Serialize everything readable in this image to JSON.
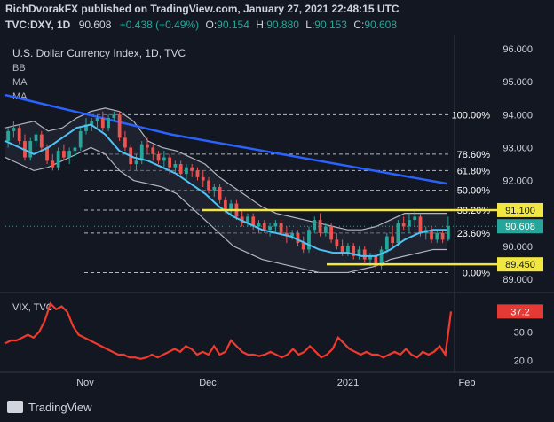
{
  "header": {
    "line1": "RichDvorakFX published on TradingView.com, January 27, 2021 22:48:15 UTC",
    "symbol": "TVC:DXY, 1D",
    "price": "90.608",
    "change": "+0.438 (+0.49%)",
    "o_label": "O:",
    "o_value": "90.154",
    "h_label": "H:",
    "h_value": "90.880",
    "l_label": "L:",
    "l_value": "90.153",
    "c_label": "C:",
    "c_value": "90.608"
  },
  "main_pane": {
    "title": "U.S. Dollar Currency Index, 1D, TVC",
    "indicators": [
      "BB",
      "MA",
      "MA"
    ]
  },
  "vix_pane": {
    "title": "VIX, TVC"
  },
  "footer": {
    "brand": "TradingView"
  },
  "colors": {
    "background": "#131722",
    "up": "#26a69a",
    "down": "#ef5350",
    "ma_long": "#2962ff",
    "ma_short": "#4fc3f7",
    "bollinger": "#b2b5be",
    "highlight": "#f2e640",
    "vix_line": "#f23a2c",
    "vix_label": "#e53935",
    "text": "#d1d4dc",
    "price_label": "#26a69a"
  },
  "chart_data": [
    {
      "type": "candlestick",
      "title": "U.S. Dollar Currency Index, 1D, TVC",
      "x_ticks": [
        "Nov",
        "Dec",
        "2021",
        "Feb"
      ],
      "y_ticks": [
        "89.000",
        "90.000",
        "91.000",
        "92.000",
        "93.000",
        "94.000",
        "95.000",
        "96.000"
      ],
      "ylim": [
        88.7,
        96.3
      ],
      "ohlc": [
        [
          93.2,
          93.6,
          93.0,
          93.5
        ],
        [
          93.5,
          93.8,
          93.3,
          93.6
        ],
        [
          93.6,
          93.7,
          93.1,
          93.2
        ],
        [
          93.2,
          93.4,
          92.6,
          92.7
        ],
        [
          92.7,
          93.3,
          92.6,
          93.2
        ],
        [
          93.2,
          93.5,
          93.0,
          93.4
        ],
        [
          93.4,
          93.5,
          92.9,
          93.0
        ],
        [
          93.0,
          93.1,
          92.5,
          92.6
        ],
        [
          92.6,
          92.8,
          92.3,
          92.4
        ],
        [
          92.4,
          93.0,
          92.3,
          92.9
        ],
        [
          92.9,
          93.1,
          92.6,
          92.7
        ],
        [
          92.7,
          93.0,
          92.5,
          92.9
        ],
        [
          92.9,
          93.1,
          92.7,
          93.0
        ],
        [
          93.0,
          93.6,
          92.9,
          93.5
        ],
        [
          93.5,
          93.9,
          93.4,
          93.7
        ],
        [
          93.7,
          93.9,
          93.5,
          93.8
        ],
        [
          93.8,
          94.0,
          93.6,
          93.9
        ],
        [
          93.9,
          94.1,
          93.5,
          93.6
        ],
        [
          93.6,
          94.0,
          93.5,
          93.9
        ],
        [
          93.9,
          94.1,
          93.8,
          94.0
        ],
        [
          94.0,
          94.1,
          93.2,
          93.3
        ],
        [
          93.3,
          93.5,
          92.9,
          93.0
        ],
        [
          93.0,
          93.1,
          92.3,
          92.5
        ],
        [
          92.5,
          92.8,
          92.3,
          92.6
        ],
        [
          92.6,
          93.2,
          92.5,
          93.1
        ],
        [
          93.1,
          93.3,
          92.8,
          93.0
        ],
        [
          93.0,
          93.1,
          92.6,
          92.8
        ],
        [
          92.8,
          92.9,
          92.5,
          92.6
        ],
        [
          92.6,
          92.9,
          92.4,
          92.7
        ],
        [
          92.7,
          92.8,
          92.2,
          92.4
        ],
        [
          92.4,
          92.6,
          92.2,
          92.5
        ],
        [
          92.5,
          92.6,
          92.1,
          92.2
        ],
        [
          92.2,
          92.5,
          92.0,
          92.4
        ],
        [
          92.4,
          92.5,
          92.1,
          92.3
        ],
        [
          92.3,
          92.4,
          92.0,
          92.1
        ],
        [
          92.1,
          92.3,
          91.8,
          92.0
        ],
        [
          92.0,
          92.1,
          91.6,
          91.7
        ],
        [
          91.7,
          91.9,
          91.5,
          91.8
        ],
        [
          91.8,
          91.9,
          91.3,
          91.4
        ],
        [
          91.4,
          91.5,
          91.0,
          91.1
        ],
        [
          91.1,
          91.4,
          90.9,
          91.3
        ],
        [
          91.3,
          91.4,
          90.8,
          90.9
        ],
        [
          90.9,
          91.1,
          90.6,
          90.7
        ],
        [
          90.7,
          91.0,
          90.6,
          90.9
        ],
        [
          90.9,
          91.0,
          90.5,
          90.6
        ],
        [
          90.6,
          90.8,
          90.4,
          90.7
        ],
        [
          90.7,
          90.8,
          90.4,
          90.5
        ],
        [
          90.5,
          90.7,
          90.3,
          90.6
        ],
        [
          90.6,
          90.8,
          90.4,
          90.7
        ],
        [
          90.7,
          90.8,
          90.3,
          90.4
        ],
        [
          90.4,
          90.6,
          90.1,
          90.3
        ],
        [
          90.3,
          90.5,
          90.2,
          90.4
        ],
        [
          90.4,
          90.5,
          90.0,
          90.1
        ],
        [
          90.1,
          90.3,
          89.8,
          89.9
        ],
        [
          89.9,
          90.6,
          89.8,
          90.5
        ],
        [
          90.5,
          90.9,
          90.4,
          90.8
        ],
        [
          90.8,
          91.0,
          90.3,
          90.4
        ],
        [
          90.4,
          90.7,
          90.3,
          90.6
        ],
        [
          90.6,
          90.7,
          90.1,
          90.2
        ],
        [
          90.2,
          90.4,
          89.9,
          90.0
        ],
        [
          90.0,
          90.2,
          89.7,
          89.8
        ],
        [
          89.8,
          90.1,
          89.7,
          90.0
        ],
        [
          90.0,
          90.1,
          89.6,
          89.7
        ],
        [
          89.7,
          90.0,
          89.6,
          89.9
        ],
        [
          89.9,
          90.0,
          89.5,
          89.6
        ],
        [
          89.6,
          89.8,
          89.4,
          89.7
        ],
        [
          89.7,
          89.8,
          89.3,
          89.4
        ],
        [
          89.4,
          90.0,
          89.3,
          89.9
        ],
        [
          89.9,
          90.4,
          89.8,
          90.3
        ],
        [
          90.3,
          90.6,
          90.0,
          90.1
        ],
        [
          90.1,
          90.8,
          90.0,
          90.7
        ],
        [
          90.7,
          90.9,
          90.5,
          90.6
        ],
        [
          90.6,
          91.0,
          90.4,
          90.8
        ],
        [
          90.8,
          91.1,
          90.6,
          90.9
        ],
        [
          90.9,
          91.0,
          90.3,
          90.4
        ],
        [
          90.4,
          90.6,
          90.2,
          90.5
        ],
        [
          90.5,
          90.6,
          90.1,
          90.2
        ],
        [
          90.2,
          90.5,
          90.1,
          90.4
        ],
        [
          90.4,
          90.5,
          90.1,
          90.2
        ],
        [
          90.2,
          90.9,
          90.15,
          90.61
        ]
      ],
      "ma_long": [
        94.6,
        94.4,
        94.2,
        94.0,
        93.8,
        93.6,
        93.4,
        93.25,
        93.1,
        92.95,
        92.8,
        92.65,
        92.5,
        92.35,
        92.2,
        92.05,
        91.9
      ],
      "ma_short": [
        93.2,
        93.0,
        92.8,
        93.0,
        93.3,
        93.6,
        93.7,
        93.4,
        92.9,
        92.7,
        92.6,
        92.4,
        92.2,
        91.9,
        91.6,
        91.2,
        90.9,
        90.7,
        90.5,
        90.4,
        90.3,
        90.1,
        89.9,
        89.8,
        89.8,
        89.7,
        89.7,
        89.9,
        90.2,
        90.4,
        90.5,
        90.5
      ],
      "bb_upper": [
        93.6,
        93.7,
        93.8,
        93.5,
        93.6,
        93.9,
        94.1,
        94.2,
        94.1,
        93.8,
        93.2,
        93.0,
        92.9,
        92.7,
        92.5,
        92.1,
        91.8,
        91.5,
        91.2,
        91.0,
        90.9,
        90.8,
        90.7,
        90.6,
        90.5,
        90.5,
        90.6,
        90.8,
        91.0,
        91.0,
        91.0,
        91.0
      ],
      "bb_lower": [
        92.7,
        92.5,
        92.3,
        92.4,
        92.6,
        92.8,
        93.0,
        92.8,
        92.3,
        92.0,
        91.9,
        91.8,
        91.6,
        91.2,
        90.8,
        90.4,
        90.0,
        89.8,
        89.6,
        89.5,
        89.4,
        89.3,
        89.2,
        89.2,
        89.2,
        89.3,
        89.4,
        89.6,
        89.7,
        89.8,
        89.9,
        89.9
      ],
      "fib_levels": [
        {
          "label": "100.00%",
          "value": 94.0
        },
        {
          "label": "78.60%",
          "value": 92.8
        },
        {
          "label": "61.80%",
          "value": 92.3
        },
        {
          "label": "50.00%",
          "value": 91.7
        },
        {
          "label": "38.20%",
          "value": 91.1
        },
        {
          "label": "23.60%",
          "value": 90.4
        },
        {
          "label": "0.00%",
          "value": 89.2
        }
      ],
      "levels": [
        {
          "label": "91.100",
          "value": 91.1
        },
        {
          "label": "90.608",
          "value": 90.608
        },
        {
          "label": "89.450",
          "value": 89.45
        }
      ]
    },
    {
      "type": "line",
      "title": "VIX, TVC",
      "y_ticks": [
        "20.0",
        "30.0"
      ],
      "ylim": [
        17,
        42
      ],
      "values": [
        26,
        27,
        27,
        28,
        29,
        28,
        30,
        34,
        40,
        38,
        39,
        37,
        32,
        29,
        28,
        27,
        26,
        25,
        24,
        23,
        22,
        22,
        21,
        21,
        20.5,
        21,
        22,
        21,
        22,
        23,
        24,
        23,
        25,
        24,
        22,
        23,
        22,
        25,
        22,
        23,
        27,
        25,
        23,
        22,
        22,
        21.5,
        22,
        23,
        22,
        21,
        22,
        24,
        22,
        23,
        25,
        23,
        21,
        22,
        24,
        28,
        26,
        24,
        23,
        22,
        23,
        22,
        22,
        21,
        22,
        23,
        22,
        24,
        22,
        21,
        23,
        22,
        23,
        25,
        22,
        37.2
      ],
      "last_label": "37.2"
    }
  ]
}
